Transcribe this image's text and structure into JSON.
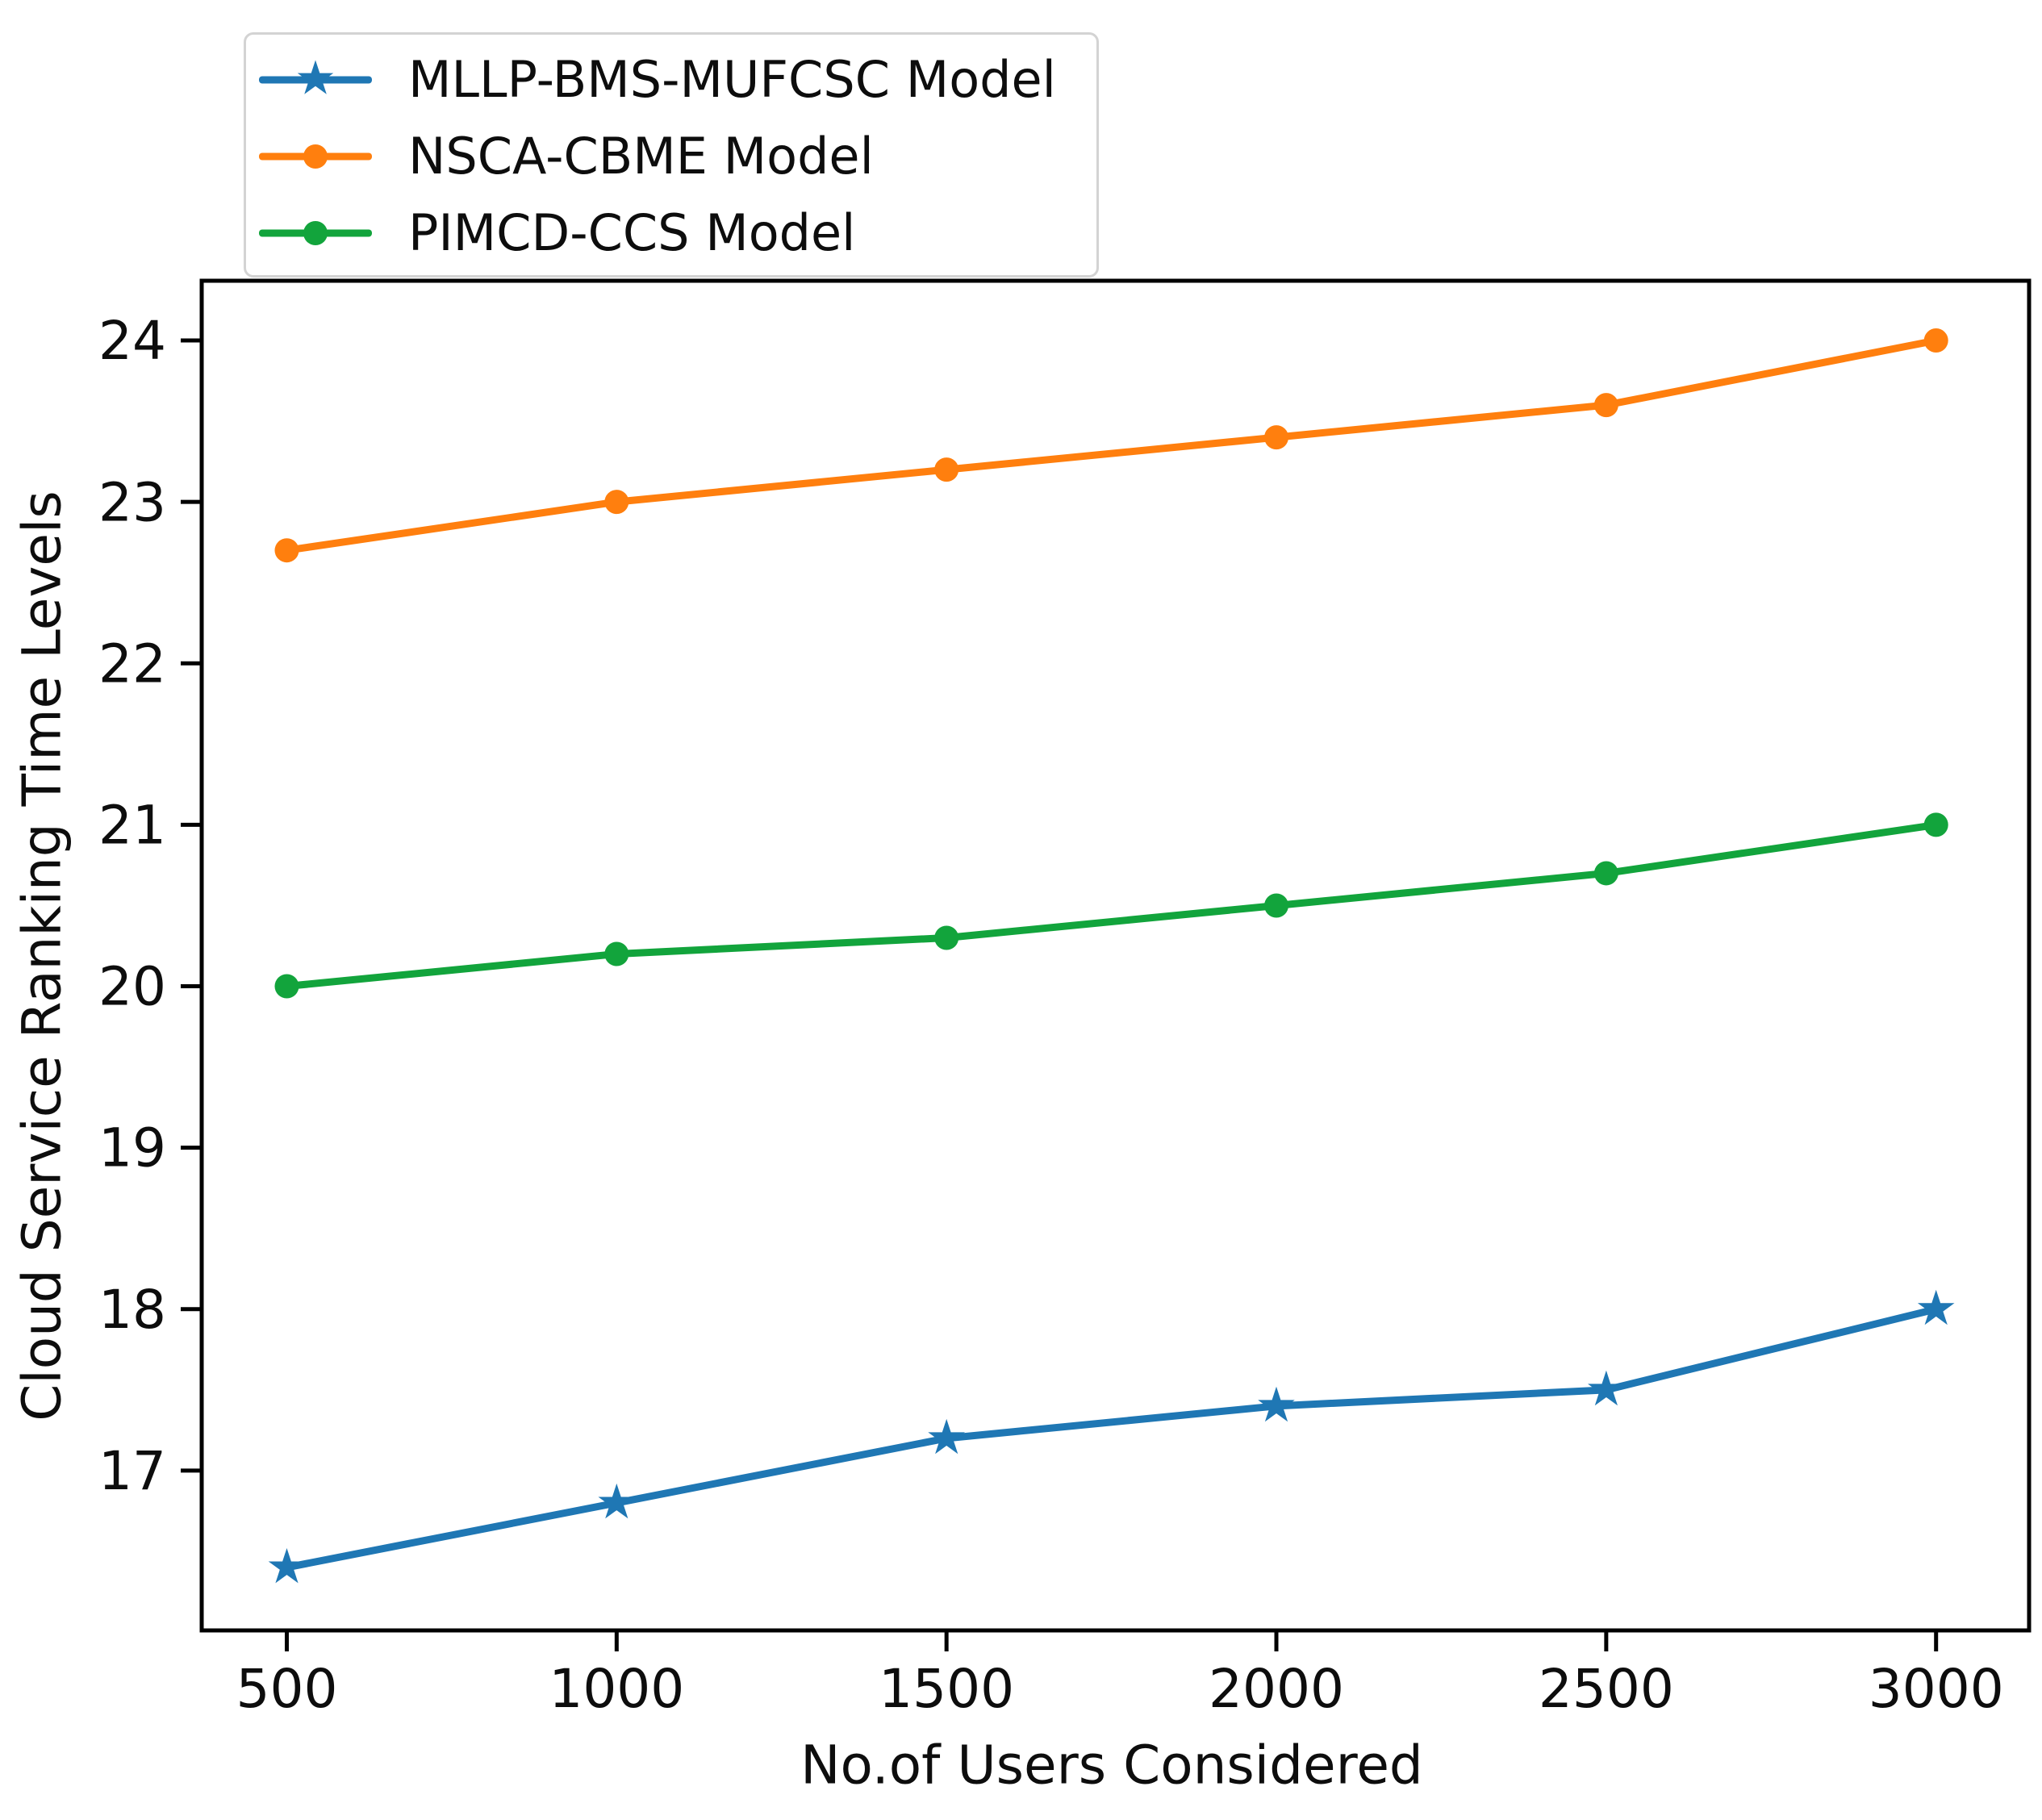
{
  "figure": {
    "background": "#ffffff",
    "text_color": "#0d0d0d"
  },
  "legend": {
    "position": "upper-left",
    "items": [
      {
        "label": "MLLP-BMS-MUFCSC Model",
        "color": "#1f77b4",
        "marker": "star"
      },
      {
        "label": "NSCA-CBME Model",
        "color": "#ff7f0e",
        "marker": "circle"
      },
      {
        "label": "PIMCD-CCS Model",
        "color": "#12a43c",
        "marker": "circle"
      }
    ]
  },
  "chart_data": {
    "type": "line",
    "title": "",
    "xlabel": "No.of Users Considered",
    "ylabel": "Cloud Service Ranking Time Levels",
    "x": [
      500,
      1000,
      1500,
      2000,
      2500,
      3000
    ],
    "series": [
      {
        "name": "MLLP-BMS-MUFCSC Model",
        "color": "#1f77b4",
        "marker": "star",
        "values": [
          16.4,
          16.8,
          17.2,
          17.4,
          17.5,
          18.0
        ]
      },
      {
        "name": "NSCA-CBME Model",
        "color": "#ff7f0e",
        "marker": "circle",
        "values": [
          22.7,
          23.0,
          23.2,
          23.4,
          23.6,
          24.0
        ]
      },
      {
        "name": "PIMCD-CCS Model",
        "color": "#12a43c",
        "marker": "circle",
        "values": [
          20.0,
          20.2,
          20.3,
          20.5,
          20.7,
          21.0
        ]
      }
    ],
    "x_ticks": [
      "500",
      "1000",
      "1500",
      "2000",
      "2500",
      "3000"
    ],
    "x_tick_values": [
      500,
      1000,
      1500,
      2000,
      2500,
      3000
    ],
    "y_ticks": [
      "17",
      "18",
      "19",
      "20",
      "21",
      "22",
      "23",
      "24"
    ],
    "y_tick_values": [
      17,
      18,
      19,
      20,
      21,
      22,
      23,
      24
    ],
    "xlim": [
      371,
      3141
    ],
    "ylim": [
      16.01,
      24.37
    ],
    "grid": false,
    "legend_position": "upper-left"
  }
}
